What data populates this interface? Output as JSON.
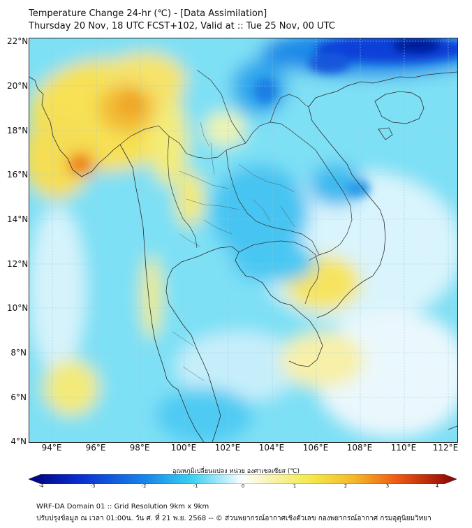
{
  "header": {
    "title": "Temperature Change 24-hr (℃) - [Data Assimilation]",
    "subtitle": "Thursday 20 Nov, 18 UTC FCST+102, Valid at :: Tue 25 Nov, 00 UTC"
  },
  "map": {
    "region": "Thailand and surrounding mainland Southeast Asia",
    "lat_labels": [
      "22°N",
      "20°N",
      "18°N",
      "16°N",
      "14°N",
      "12°N",
      "10°N",
      "8°N",
      "6°N",
      "4°N"
    ],
    "lon_labels": [
      "94°E",
      "96°E",
      "98°E",
      "100°E",
      "102°E",
      "104°E",
      "106°E",
      "108°E",
      "110°E",
      "112°E"
    ],
    "lat_range": [
      4,
      22.2
    ],
    "lon_range": [
      93,
      112.4
    ],
    "gridlines": true
  },
  "colorbar": {
    "title": "อุณหภูมิเปลี่ยนแปลง หน่วย องศาเซลเซียส (℃)",
    "ticks": [
      "-4",
      "-3",
      "-2",
      "-1",
      "0",
      "1",
      "2",
      "3",
      "4"
    ],
    "range": [
      -4,
      4
    ],
    "colors": {
      "min": "#00007a",
      "cold": "#0a3ee6",
      "cool": "#28c6f0",
      "neutral": "#f4fbff",
      "warm": "#f4e84a",
      "hot": "#f08a1c",
      "max": "#8a0000"
    }
  },
  "footer": {
    "line1": "WRF-DA Domain 01 :: Grid Resolution 9km x 9km",
    "line2": "ปรับปรุงข้อมูล ณ เวลา 01:00น. วัน ศ. ที่ 21 พ.ย. 2568 -- © ส่วนพยากรณ์อากาศเชิงตัวเลข กองพยากรณ์อากาศ กรมอุตุนิยมวิทยา"
  }
}
